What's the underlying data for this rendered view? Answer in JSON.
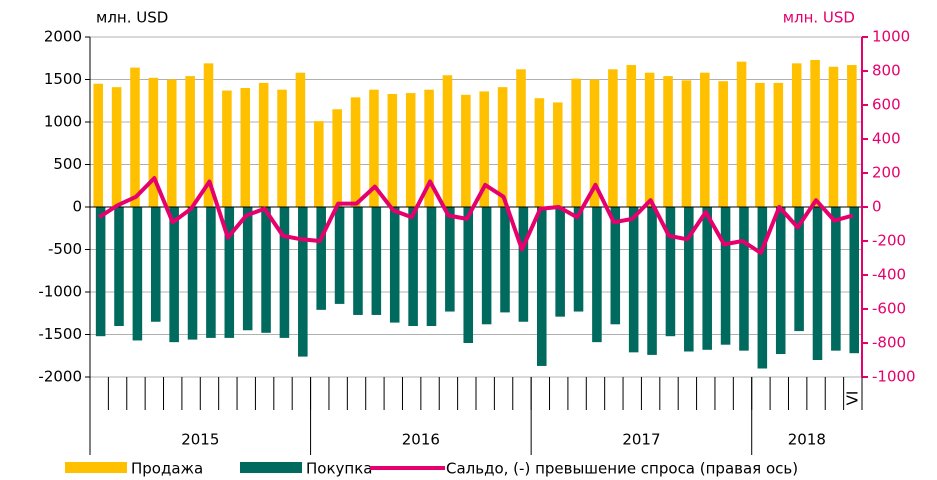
{
  "chart_data": {
    "type": "bar",
    "y_label": "млн. USD",
    "y2_label": "млн. USD",
    "categories": [
      null,
      null,
      null,
      null,
      null,
      null,
      null,
      null,
      null,
      null,
      null,
      null,
      null,
      null,
      null,
      null,
      null,
      null,
      null,
      null,
      null,
      null,
      null,
      null,
      null,
      null,
      null,
      null,
      null,
      null,
      null,
      null,
      null,
      null,
      null,
      null,
      null,
      null,
      null,
      null,
      null,
      "VI"
    ],
    "year_groups": [
      {
        "label": "2015",
        "count": 12
      },
      {
        "label": "2016",
        "count": 12
      },
      {
        "label": "2017",
        "count": 12
      },
      {
        "label": "2018",
        "count": 6
      }
    ],
    "ylim": [
      -2000,
      2000
    ],
    "yticks": [
      -2000,
      -1500,
      -1000,
      -500,
      0,
      500,
      1000,
      1500,
      2000
    ],
    "y2lim": [
      -1000,
      1000
    ],
    "y2ticks": [
      -1000,
      -800,
      -600,
      -400,
      -200,
      0,
      200,
      400,
      600,
      800,
      1000
    ],
    "grid": true,
    "series": [
      {
        "name": "Продажа",
        "color": "#ffc000",
        "values": [
          1450,
          1410,
          1640,
          1520,
          1500,
          1540,
          1690,
          1370,
          1400,
          1460,
          1380,
          1580,
          1010,
          1150,
          1290,
          1380,
          1330,
          1340,
          1380,
          1550,
          1320,
          1360,
          1410,
          1620,
          1280,
          1230,
          1510,
          1500,
          1620,
          1670,
          1580,
          1540,
          1490,
          1580,
          1480,
          1710,
          1460,
          1460,
          1690,
          1730,
          1650,
          1670
        ]
      },
      {
        "name": "Покупка",
        "color": "#006a5f",
        "values": [
          -1520,
          -1400,
          -1570,
          -1350,
          -1590,
          -1560,
          -1540,
          -1540,
          -1450,
          -1480,
          -1540,
          -1760,
          -1210,
          -1140,
          -1270,
          -1270,
          -1360,
          -1400,
          -1400,
          -1230,
          -1600,
          -1380,
          -1240,
          -1350,
          -1870,
          -1290,
          -1230,
          -1590,
          -1380,
          -1710,
          -1740,
          -1520,
          -1700,
          -1680,
          -1620,
          -1690,
          -1900,
          -1730,
          -1460,
          -1800,
          -1690,
          -1720
        ]
      },
      {
        "name": "Сальдо, (-) превышение спроса (правая ось)",
        "color": "#e6006e",
        "type": "line",
        "axis": "y2",
        "values": [
          -60,
          10,
          60,
          170,
          -90,
          -10,
          150,
          -180,
          -50,
          -10,
          -170,
          -190,
          -200,
          20,
          20,
          120,
          -20,
          -60,
          150,
          -50,
          -70,
          130,
          60,
          -250,
          -10,
          0,
          -60,
          130,
          -90,
          -70,
          40,
          -170,
          -190,
          -30,
          -220,
          -200,
          -270,
          0,
          -120,
          40,
          -80,
          -50
        ]
      }
    ]
  }
}
